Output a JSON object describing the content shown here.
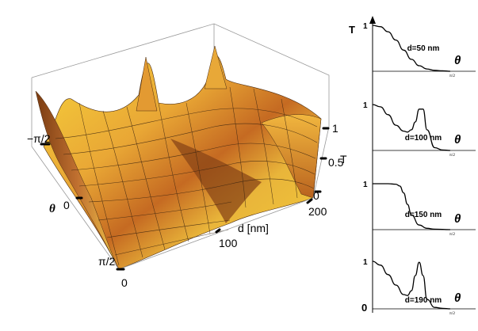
{
  "chart_data": [
    {
      "type": "surface",
      "x_param": "θ",
      "x_ticks": [
        "−π/2",
        "0",
        "π/2"
      ],
      "y_param": "d [nm]",
      "y_ticks": [
        "0",
        "100",
        "200"
      ],
      "z_param": "T",
      "z_ticks": [
        "0",
        "0.5",
        "1"
      ],
      "zlim": [
        0,
        1
      ],
      "colors": {
        "high": "#f3c935",
        "low": "#7a3c12",
        "mid": "#d98a2c"
      }
    },
    {
      "type": "line",
      "ylabel": "T",
      "y_ticks": [
        "1",
        "0"
      ],
      "x_axis_label": "θ",
      "x_end_tick": "π/2",
      "panels": [
        {
          "label": "d=50 nm",
          "x": [
            0,
            0.1,
            0.2,
            0.3,
            0.4,
            0.5,
            0.6,
            0.7,
            0.8,
            0.9,
            1.0
          ],
          "y": [
            1,
            0.97,
            0.86,
            0.68,
            0.46,
            0.26,
            0.12,
            0.05,
            0.02,
            0.01,
            0
          ]
        },
        {
          "label": "d=100 nm",
          "x": [
            0,
            0.1,
            0.2,
            0.3,
            0.4,
            0.45,
            0.5,
            0.55,
            0.6,
            0.65,
            0.7,
            0.8,
            0.9,
            1.0
          ],
          "y": [
            1,
            0.95,
            0.78,
            0.55,
            0.42,
            0.4,
            0.45,
            0.62,
            0.9,
            0.9,
            0.45,
            0.06,
            0.01,
            0
          ]
        },
        {
          "label": "d=150 nm",
          "x": [
            0,
            0.2,
            0.3,
            0.35,
            0.4,
            0.45,
            0.5,
            0.6,
            0.7,
            0.8,
            1.0
          ],
          "y": [
            1,
            1,
            0.99,
            0.95,
            0.8,
            0.55,
            0.32,
            0.1,
            0.03,
            0.01,
            0
          ]
        },
        {
          "label": "d=190 nm",
          "x": [
            0,
            0.1,
            0.2,
            0.3,
            0.4,
            0.45,
            0.5,
            0.55,
            0.6,
            0.65,
            0.7,
            0.8,
            0.9,
            1.0
          ],
          "y": [
            1,
            0.92,
            0.72,
            0.5,
            0.3,
            0.28,
            0.38,
            0.7,
            0.98,
            0.7,
            0.2,
            0.03,
            0.01,
            0
          ]
        }
      ]
    }
  ]
}
